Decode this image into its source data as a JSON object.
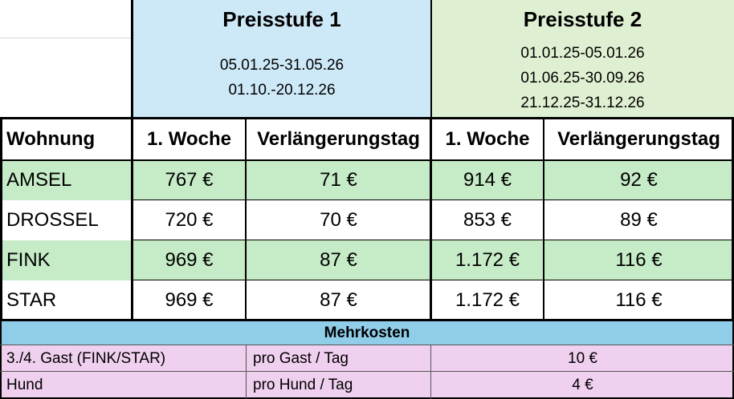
{
  "preisstufen": [
    {
      "title": "Preisstufe 1",
      "dates": [
        "05.01.25-31.05.26",
        "01.10.-20.12.26"
      ]
    },
    {
      "title": "Preisstufe 2",
      "dates": [
        "01.01.25-05.01.26",
        "01.06.25-30.09.26",
        "21.12.25-31.12.26"
      ]
    }
  ],
  "headers": {
    "wohnung": "Wohnung",
    "p1_woche": "1. Woche",
    "p1_tag": "Verlängerungstag",
    "p2_woche": "1. Woche",
    "p2_tag": "Verlängerungstag"
  },
  "rows": [
    {
      "name": "AMSEL",
      "p1_woche": "767 €",
      "p1_tag": "71 €",
      "p2_woche": "914 €",
      "p2_tag": "92 €"
    },
    {
      "name": "DROSSEL",
      "p1_woche": "720 €",
      "p1_tag": "70 €",
      "p2_woche": "853 €",
      "p2_tag": "89 €"
    },
    {
      "name": "FINK",
      "p1_woche": "969 €",
      "p1_tag": "87 €",
      "p2_woche": "1.172 €",
      "p2_tag": "116 €"
    },
    {
      "name": "STAR",
      "p1_woche": "969 €",
      "p1_tag": "87 €",
      "p2_woche": "1.172 €",
      "p2_tag": "116 €"
    }
  ],
  "mehrkosten": {
    "title": "Mehrkosten",
    "items": [
      {
        "label": "3./4. Gast (FINK/STAR)",
        "unit": "pro Gast / Tag",
        "price": "10 €"
      },
      {
        "label": "Hund",
        "unit": "pro Hund / Tag",
        "price": "4 €"
      }
    ]
  },
  "colors": {
    "preisstufe1_bg": "#cde8f7",
    "preisstufe2_bg": "#dff0d2",
    "row_highlight": "#c6ecc7",
    "mehrkosten_header": "#8fcde9",
    "mehrkosten_rows": "#f0d0ef"
  }
}
